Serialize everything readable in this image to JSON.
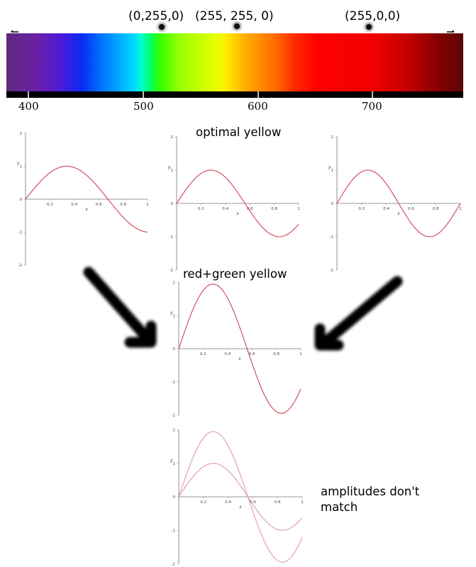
{
  "spectrum": {
    "rgb_labels": [
      "(0,255,0)",
      "(255, 255, 0)",
      "(255,0,0)"
    ],
    "wavelength_ticks": [
      "400",
      "500",
      "600",
      "700"
    ]
  },
  "captions": {
    "optimal": "optimal yellow",
    "redgreen": "red+green yellow",
    "amplitudes": "amplitudes don't match"
  },
  "axis_labels": {
    "y": "y",
    "x": "x",
    "x_ticks": [
      "0.2",
      "0.4",
      "0.6",
      "0.8",
      "1"
    ],
    "y_ticks": [
      "2",
      "1",
      "0",
      "-1",
      "-2"
    ]
  },
  "chart_data": [
    {
      "id": "green-wave",
      "type": "line",
      "xlim": [
        0,
        1
      ],
      "ylim": [
        -2,
        2
      ],
      "series": [
        {
          "color": "#cc4455",
          "amplitude": 1,
          "period": 1.35
        }
      ]
    },
    {
      "id": "optimal-yellow-wave",
      "type": "line",
      "xlim": [
        0,
        1
      ],
      "ylim": [
        -2,
        2
      ],
      "series": [
        {
          "color": "#cc4455",
          "amplitude": 1,
          "period": 1.12
        }
      ]
    },
    {
      "id": "red-wave",
      "type": "line",
      "xlim": [
        0,
        1
      ],
      "ylim": [
        -2,
        2
      ],
      "series": [
        {
          "color": "#cc4455",
          "amplitude": 1,
          "period": 1.0
        }
      ]
    },
    {
      "id": "redgreen-yellow-wave",
      "type": "line",
      "xlim": [
        0,
        1
      ],
      "ylim": [
        -2,
        2
      ],
      "series": [
        {
          "color": "#cc4455",
          "amplitude": 1.95,
          "period": 1.12
        }
      ]
    },
    {
      "id": "comparison-wave",
      "type": "line",
      "xlim": [
        0,
        1
      ],
      "ylim": [
        -2,
        2
      ],
      "series": [
        {
          "color": "#e09aa3",
          "amplitude": 1.95,
          "period": 1.12
        },
        {
          "color": "#e09aa3",
          "amplitude": 1,
          "period": 1.12
        }
      ]
    }
  ]
}
